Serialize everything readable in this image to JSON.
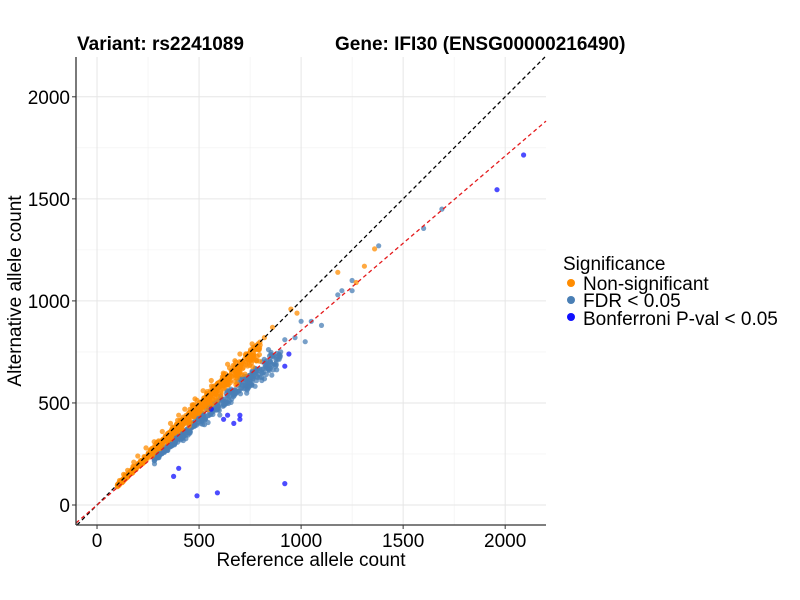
{
  "chart_data": {
    "type": "scatter",
    "title_left": "Variant: rs2241089",
    "title_right": "Gene: IFI30 (ENSG00000216490)",
    "xlabel": "Reference allele count",
    "ylabel": "Alternative allele count",
    "xlim": [
      -103,
      2200
    ],
    "ylim": [
      -98,
      2195
    ],
    "x_ticks": [
      0,
      500,
      1000,
      1500,
      2000
    ],
    "y_ticks": [
      0,
      500,
      1000,
      1500,
      2000
    ],
    "x_tick_labels": [
      "0",
      "500",
      "1000",
      "1500",
      "2000"
    ],
    "y_tick_labels": [
      "0",
      "500",
      "1000",
      "1500",
      "2000"
    ],
    "grid": true,
    "reference_lines": [
      {
        "name": "identity",
        "slope": 1.0,
        "intercept": 0,
        "color": "#000000",
        "style": "dashed"
      },
      {
        "name": "fitted-ratio",
        "slope": 0.855,
        "intercept": 0,
        "color": "#e41a1c",
        "style": "dashed"
      }
    ],
    "legend": {
      "title": "Significance",
      "position": "right",
      "entries": [
        {
          "label": "Non-significant",
          "color": "#ff8c00"
        },
        {
          "label": "FDR < 0.05",
          "color": "#4a7fb5"
        },
        {
          "label": "Bonferroni P-val < 0.05",
          "color": "#1010ff"
        }
      ]
    },
    "series": [
      {
        "name": "Non-significant",
        "color": "#ff8c00",
        "cluster": {
          "count": 700,
          "x_range": [
            100,
            800
          ],
          "ratio_mean": 0.96,
          "ratio_sd": 0.06
        },
        "points": [
          [
            1360,
            1255
          ],
          [
            1310,
            1170
          ],
          [
            1180,
            1140
          ],
          [
            1270,
            1090
          ],
          [
            950,
            960
          ],
          [
            980,
            940
          ],
          [
            860,
            870
          ],
          [
            820,
            820
          ],
          [
            760,
            790
          ],
          [
            740,
            740
          ],
          [
            700,
            740
          ],
          [
            680,
            700
          ],
          [
            640,
            690
          ],
          [
            620,
            640
          ],
          [
            560,
            610
          ],
          [
            520,
            560
          ],
          [
            480,
            520
          ],
          [
            430,
            470
          ],
          [
            400,
            440
          ],
          [
            360,
            400
          ],
          [
            320,
            360
          ],
          [
            280,
            310
          ],
          [
            240,
            280
          ],
          [
            200,
            240
          ],
          [
            180,
            210
          ],
          [
            150,
            170
          ],
          [
            130,
            150
          ],
          [
            110,
            120
          ],
          [
            100,
            95
          ]
        ]
      },
      {
        "name": "FDR < 0.05",
        "color": "#4a7fb5",
        "cluster": {
          "count": 420,
          "x_range": [
            280,
            900
          ],
          "ratio_mean": 0.82,
          "ratio_sd": 0.05
        },
        "points": [
          [
            1690,
            1450
          ],
          [
            1600,
            1355
          ],
          [
            1380,
            1270
          ],
          [
            1250,
            1100
          ],
          [
            1250,
            1050
          ],
          [
            1200,
            1050
          ],
          [
            1180,
            1030
          ],
          [
            1100,
            880
          ],
          [
            1050,
            900
          ],
          [
            1020,
            800
          ],
          [
            1000,
            900
          ],
          [
            970,
            820
          ],
          [
            920,
            810
          ],
          [
            900,
            750
          ],
          [
            860,
            730
          ],
          [
            830,
            640
          ],
          [
            780,
            660
          ],
          [
            760,
            600
          ],
          [
            700,
            620
          ],
          [
            680,
            550
          ],
          [
            640,
            560
          ],
          [
            610,
            500
          ],
          [
            560,
            480
          ],
          [
            520,
            440
          ],
          [
            480,
            410
          ],
          [
            440,
            370
          ],
          [
            400,
            330
          ],
          [
            380,
            300
          ],
          [
            340,
            270
          ]
        ]
      },
      {
        "name": "Bonferroni P-val < 0.05",
        "color": "#1010ff",
        "points": [
          [
            2090,
            1715
          ],
          [
            1960,
            1545
          ],
          [
            940,
            740
          ],
          [
            920,
            680
          ],
          [
            700,
            420
          ],
          [
            700,
            440
          ],
          [
            670,
            400
          ],
          [
            560,
            470
          ],
          [
            400,
            180
          ],
          [
            375,
            140
          ],
          [
            490,
            45
          ],
          [
            590,
            60
          ],
          [
            920,
            105
          ],
          [
            640,
            440
          ],
          [
            620,
            420
          ]
        ]
      }
    ]
  }
}
